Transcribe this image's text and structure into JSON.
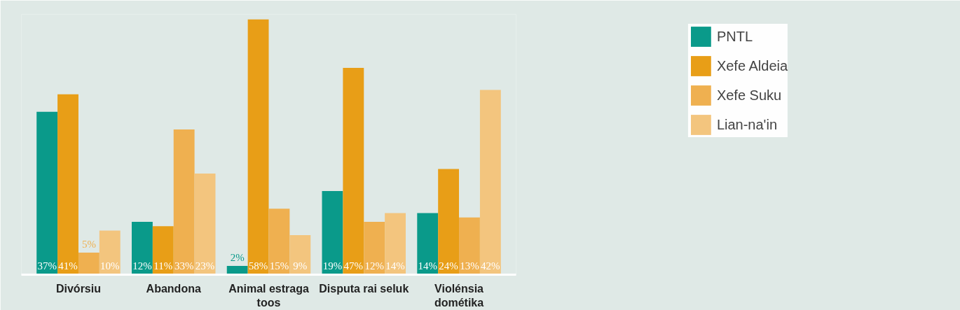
{
  "chart_data": {
    "type": "bar",
    "categories": [
      "Divórsiu",
      "Abandona",
      "Animal estraga toos",
      "Disputa rai seluk",
      "Violénsia dométika"
    ],
    "series": [
      {
        "name": "PNTL",
        "color": "#0a9a8a",
        "values": [
          37,
          12,
          2,
          19,
          14
        ],
        "value_labels": [
          "37%",
          "12%",
          "2%",
          "19%",
          "14%"
        ]
      },
      {
        "name": "Xefe Aldeia",
        "color": "#e89e17",
        "values": [
          41,
          11,
          58,
          47,
          24
        ],
        "value_labels": [
          "41%",
          "11%",
          "58%",
          "47%",
          "24%"
        ]
      },
      {
        "name": "Xefe Suku",
        "color": "#efb050",
        "values": [
          5,
          33,
          15,
          12,
          13
        ],
        "value_labels": [
          "5%",
          "33%",
          "15%",
          "12%",
          "13%"
        ]
      },
      {
        "name": "Lian-na'in",
        "color": "#f3c57e",
        "values": [
          10,
          23,
          9,
          14,
          42
        ],
        "value_labels": [
          "10%",
          "23%",
          "9%",
          "14%",
          "42%"
        ]
      }
    ],
    "legend": "top right",
    "grid": false
  }
}
